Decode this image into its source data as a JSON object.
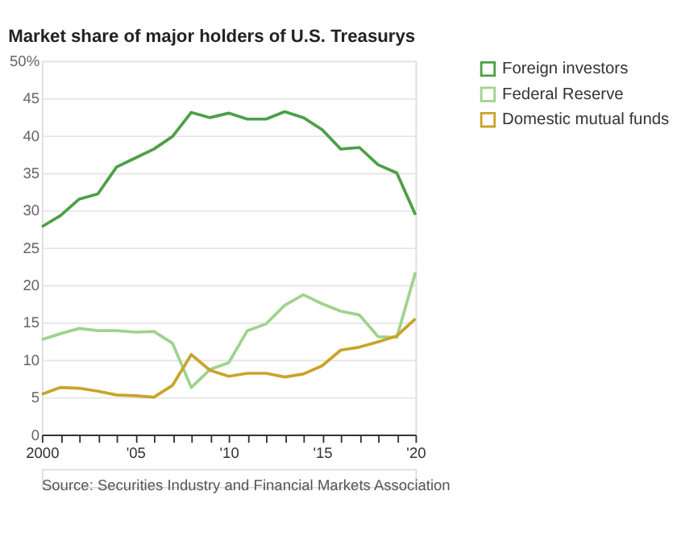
{
  "chart_data": {
    "type": "line",
    "title": "Market share of major holders of U.S. Treasurys",
    "x": [
      2000,
      2001,
      2002,
      2003,
      2004,
      2005,
      2006,
      2007,
      2008,
      2009,
      2010,
      2011,
      2012,
      2013,
      2014,
      2015,
      2016,
      2017,
      2018,
      2019,
      2020
    ],
    "series": [
      {
        "name": "Foreign investors",
        "color": "#4e9f47",
        "values": [
          27.8,
          29.3,
          31.5,
          32.2,
          35.8,
          37.0,
          38.2,
          39.9,
          43.1,
          42.4,
          43.0,
          42.2,
          42.2,
          43.2,
          42.4,
          40.8,
          38.2,
          38.4,
          36.1,
          35.0,
          29.4
        ]
      },
      {
        "name": "Federal Reserve",
        "color": "#9fd38d",
        "values": [
          12.7,
          13.5,
          14.2,
          13.9,
          13.9,
          13.7,
          13.8,
          12.2,
          6.3,
          8.7,
          9.6,
          13.9,
          14.8,
          17.3,
          18.7,
          17.5,
          16.5,
          16.0,
          13.1,
          13.0,
          21.7
        ]
      },
      {
        "name": "Domestic mutual funds",
        "color": "#c9a42a",
        "values": [
          5.4,
          6.3,
          6.2,
          5.8,
          5.3,
          5.2,
          5.0,
          6.6,
          10.7,
          8.6,
          7.8,
          8.2,
          8.2,
          7.7,
          8.1,
          9.2,
          11.3,
          11.7,
          12.4,
          13.2,
          15.5
        ]
      }
    ],
    "xlim": [
      2000,
      2020
    ],
    "xticks": [
      {
        "value": 2000,
        "label": "2000"
      },
      {
        "value": 2001,
        "label": null
      },
      {
        "value": 2002,
        "label": null
      },
      {
        "value": 2003,
        "label": null
      },
      {
        "value": 2004,
        "label": null
      },
      {
        "value": 2005,
        "label": "'05"
      },
      {
        "value": 2006,
        "label": null
      },
      {
        "value": 2007,
        "label": null
      },
      {
        "value": 2008,
        "label": null
      },
      {
        "value": 2009,
        "label": null
      },
      {
        "value": 2010,
        "label": "'10"
      },
      {
        "value": 2011,
        "label": null
      },
      {
        "value": 2012,
        "label": null
      },
      {
        "value": 2013,
        "label": null
      },
      {
        "value": 2014,
        "label": null
      },
      {
        "value": 2015,
        "label": "'15"
      },
      {
        "value": 2016,
        "label": null
      },
      {
        "value": 2017,
        "label": null
      },
      {
        "value": 2018,
        "label": null
      },
      {
        "value": 2019,
        "label": null
      },
      {
        "value": 2020,
        "label": "'20"
      }
    ],
    "ylim": [
      0,
      50
    ],
    "yticks": [
      0,
      5,
      10,
      15,
      20,
      25,
      30,
      35,
      40,
      45,
      {
        "value": 50,
        "label": "50%"
      }
    ],
    "grid": "y",
    "legend": "right",
    "marker": "none",
    "line_style": "solid",
    "annotations": [
      "Source: Securities Industry and Financial Markets Association"
    ]
  }
}
